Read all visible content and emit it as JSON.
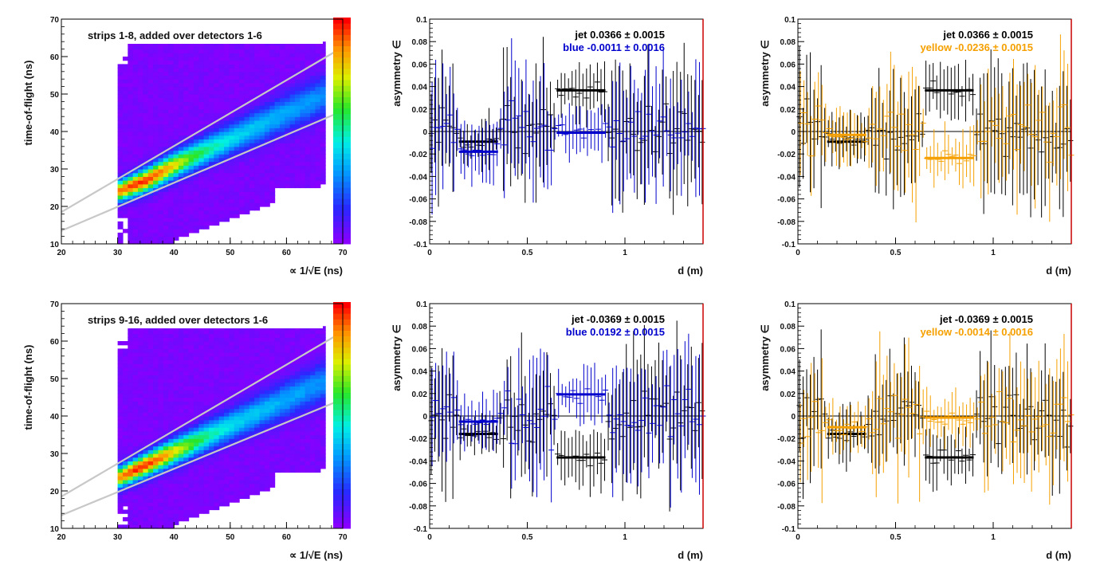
{
  "chart_data": [
    {
      "type": "heatmap",
      "title": "strips 1-8, added over detectors 1-6",
      "xlabel": "∝ 1/√E (ns)",
      "ylabel": "time-of-flight (ns)",
      "xlim": [
        20,
        70
      ],
      "ylim": [
        10,
        70
      ],
      "xticks": [
        20,
        30,
        40,
        50,
        60,
        70
      ],
      "yticks": [
        10,
        20,
        30,
        40,
        50,
        60,
        70
      ],
      "colors": {
        "low": "#8800ff",
        "high": "#ff0000"
      },
      "ridge": {
        "x": [
          30,
          35,
          40,
          45,
          50,
          55,
          60,
          65
        ],
        "y": [
          24,
          27,
          31,
          34.5,
          38,
          41.5,
          45,
          48.5
        ]
      },
      "band_lines": [
        {
          "x": [
            20,
            70
          ],
          "y": [
            18.5,
            62.5
          ]
        },
        {
          "x": [
            20,
            70
          ],
          "y": [
            13.5,
            45.5
          ]
        }
      ]
    },
    {
      "type": "scatter",
      "xlabel": "d (m)",
      "ylabel": "asymmetry ∈",
      "xlim": [
        0,
        1.4
      ],
      "ylim": [
        -0.1,
        0.1
      ],
      "xticks": [
        0,
        0.5,
        1
      ],
      "yticks": [
        -0.1,
        -0.08,
        -0.06,
        -0.04,
        -0.02,
        0,
        0.02,
        0.04,
        0.06,
        0.08,
        0.1
      ],
      "series": [
        {
          "name": "jet",
          "label": "jet  0.0366 ± 0.0015",
          "color": "#000000",
          "fits": [
            {
              "x": [
                0.15,
                0.35
              ],
              "y": -0.009
            },
            {
              "x": [
                0.65,
                0.9
              ],
              "y": 0.0366
            }
          ]
        },
        {
          "name": "blue",
          "label": "blue -0.0011 ± 0.0016",
          "color": "#0000cc",
          "fits": [
            {
              "x": [
                0.15,
                0.35
              ],
              "y": -0.018
            },
            {
              "x": [
                0.65,
                0.9
              ],
              "y": -0.0011
            }
          ]
        }
      ]
    },
    {
      "type": "scatter",
      "xlabel": "d (m)",
      "ylabel": "asymmetry ∈",
      "xlim": [
        0,
        1.4
      ],
      "ylim": [
        -0.1,
        0.1
      ],
      "xticks": [
        0,
        0.5,
        1
      ],
      "yticks": [
        -0.1,
        -0.08,
        -0.06,
        -0.04,
        -0.02,
        0,
        0.02,
        0.04,
        0.06,
        0.08,
        0.1
      ],
      "series": [
        {
          "name": "jet",
          "label": "jet  0.0366 ± 0.0015",
          "color": "#000000",
          "fits": [
            {
              "x": [
                0.15,
                0.35
              ],
              "y": -0.009
            },
            {
              "x": [
                0.65,
                0.9
              ],
              "y": 0.0366
            }
          ]
        },
        {
          "name": "yellow",
          "label": "yellow -0.0236 ± 0.0015",
          "color": "#f5a000",
          "fits": [
            {
              "x": [
                0.15,
                0.35
              ],
              "y": -0.003
            },
            {
              "x": [
                0.65,
                0.9
              ],
              "y": -0.0236
            }
          ]
        }
      ]
    },
    {
      "type": "heatmap",
      "title": "strips 9-16, added over detectors 1-6",
      "xlabel": "∝ 1/√E (ns)",
      "ylabel": "time-of-flight (ns)",
      "xlim": [
        20,
        70
      ],
      "ylim": [
        10,
        70
      ],
      "xticks": [
        20,
        30,
        40,
        50,
        60,
        70
      ],
      "yticks": [
        10,
        20,
        30,
        40,
        50,
        60,
        70
      ],
      "colors": {
        "low": "#8800ff",
        "high": "#ff0000"
      },
      "ridge": {
        "x": [
          30,
          35,
          40,
          45,
          50,
          55,
          60,
          65
        ],
        "y": [
          23.5,
          27,
          30.5,
          34,
          37.5,
          41,
          44.5,
          48
        ]
      },
      "band_lines": [
        {
          "x": [
            20,
            70
          ],
          "y": [
            18.5,
            62.5
          ]
        },
        {
          "x": [
            20,
            70
          ],
          "y": [
            13.5,
            44.5
          ]
        }
      ]
    },
    {
      "type": "scatter",
      "xlabel": "d (m)",
      "ylabel": "asymmetry ∈",
      "xlim": [
        0,
        1.4
      ],
      "ylim": [
        -0.1,
        0.1
      ],
      "xticks": [
        0,
        0.5,
        1
      ],
      "yticks": [
        -0.1,
        -0.08,
        -0.06,
        -0.04,
        -0.02,
        0,
        0.02,
        0.04,
        0.06,
        0.08,
        0.1
      ],
      "series": [
        {
          "name": "jet",
          "label": "jet -0.0369 ± 0.0015",
          "color": "#000000",
          "fits": [
            {
              "x": [
                0.15,
                0.35
              ],
              "y": -0.016
            },
            {
              "x": [
                0.65,
                0.9
              ],
              "y": -0.0369
            }
          ]
        },
        {
          "name": "blue",
          "label": "blue  0.0192 ± 0.0015",
          "color": "#0000cc",
          "fits": [
            {
              "x": [
                0.15,
                0.35
              ],
              "y": -0.005
            },
            {
              "x": [
                0.65,
                0.9
              ],
              "y": 0.0192
            }
          ]
        }
      ]
    },
    {
      "type": "scatter",
      "xlabel": "d (m)",
      "ylabel": "asymmetry ∈",
      "xlim": [
        0,
        1.4
      ],
      "ylim": [
        -0.1,
        0.1
      ],
      "xticks": [
        0,
        0.5,
        1
      ],
      "yticks": [
        -0.1,
        -0.08,
        -0.06,
        -0.04,
        -0.02,
        0,
        0.02,
        0.04,
        0.06,
        0.08,
        0.1
      ],
      "series": [
        {
          "name": "jet",
          "label": "jet -0.0369 ± 0.0015",
          "color": "#000000",
          "fits": [
            {
              "x": [
                0.15,
                0.35
              ],
              "y": -0.016
            },
            {
              "x": [
                0.65,
                0.9
              ],
              "y": -0.0369
            }
          ]
        },
        {
          "name": "yellow",
          "label": "yellow -0.0014 ± 0.0016",
          "color": "#f5a000",
          "fits": [
            {
              "x": [
                0.15,
                0.35
              ],
              "y": -0.01
            },
            {
              "x": [
                0.65,
                0.9
              ],
              "y": -0.0014
            }
          ]
        }
      ]
    }
  ]
}
